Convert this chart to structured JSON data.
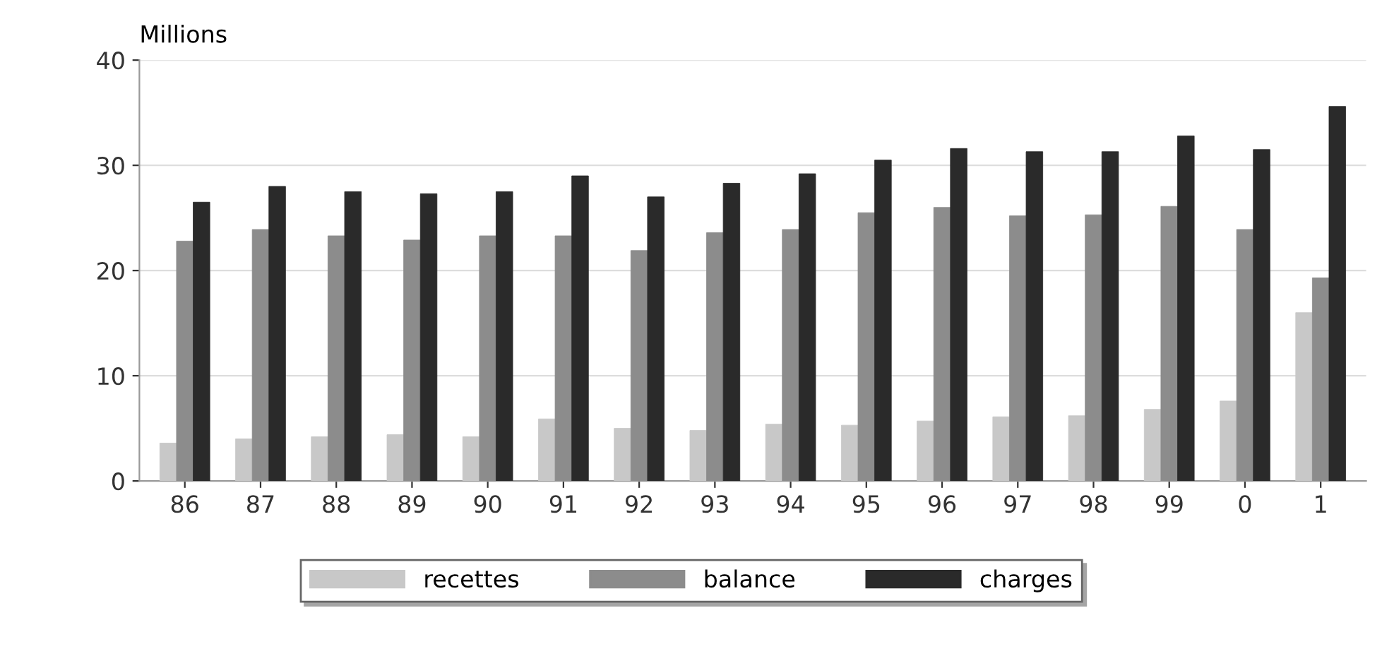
{
  "chart_data": {
    "type": "bar",
    "ylabel": "Millions",
    "categories": [
      "86",
      "87",
      "88",
      "89",
      "90",
      "91",
      "92",
      "93",
      "94",
      "95",
      "96",
      "97",
      "98",
      "99",
      "0",
      "1"
    ],
    "series": [
      {
        "name": "recettes",
        "color": "#c8c8c8",
        "values": [
          3.6,
          4.0,
          4.2,
          4.4,
          4.2,
          5.9,
          5.0,
          4.8,
          5.4,
          5.3,
          5.7,
          6.1,
          6.2,
          6.8,
          7.6,
          16.0
        ]
      },
      {
        "name": "balance",
        "color": "#8c8c8c",
        "values": [
          22.8,
          23.9,
          23.3,
          22.9,
          23.3,
          23.3,
          21.9,
          23.6,
          23.9,
          25.5,
          26.0,
          25.2,
          25.3,
          26.1,
          23.9,
          19.3
        ]
      },
      {
        "name": "charges",
        "color": "#2a2a2a",
        "values": [
          26.5,
          28.0,
          27.5,
          27.3,
          27.5,
          29.0,
          27.0,
          28.3,
          29.2,
          30.5,
          31.6,
          31.3,
          31.3,
          32.8,
          31.5,
          35.6
        ]
      }
    ],
    "ylim": [
      0,
      40
    ],
    "yticks": [
      0,
      10,
      20,
      30,
      40
    ],
    "grid": "y",
    "legend": "bottom"
  }
}
